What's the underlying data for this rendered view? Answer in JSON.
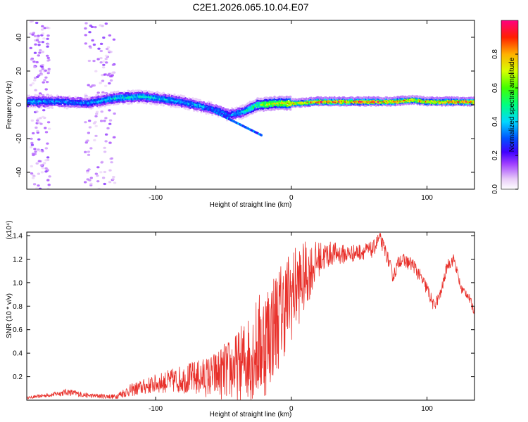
{
  "figure_title": "C2E1.2026.065.10.04.E07",
  "colors": {
    "snr_line": "#e8302a",
    "axis": "#000000",
    "background": "#ffffff"
  },
  "chart_data": [
    {
      "type": "heatmap",
      "title": "C2E1.2026.065.10.04.E07",
      "xlabel": "Height of straight line (km)",
      "ylabel": "Frequency (Hz)",
      "xlim": [
        -195,
        135
      ],
      "ylim": [
        -50,
        50
      ],
      "x_ticks": [
        -100,
        0,
        100
      ],
      "y_ticks": [
        -40,
        -20,
        0,
        20,
        40
      ],
      "colorbar": {
        "label": "Normalized spectral amplitude",
        "range": [
          0,
          1
        ],
        "ticks": [
          0.0,
          0.2,
          0.4,
          0.6,
          0.8
        ]
      },
      "ridge": {
        "description": "main spectral ridge near 0-5 Hz",
        "x": [
          -195,
          -170,
          -150,
          -130,
          -110,
          -90,
          -70,
          -55,
          -45,
          -35,
          -25,
          -10,
          0,
          20,
          50,
          75,
          90,
          100,
          135
        ],
        "frequency": [
          2,
          2,
          1,
          4,
          5,
          3,
          0,
          -3,
          -6,
          -4,
          0,
          1,
          1,
          2,
          2,
          2,
          3,
          2,
          2
        ],
        "peak_amplitude": [
          0.4,
          0.35,
          0.35,
          0.45,
          0.45,
          0.4,
          0.4,
          0.35,
          0.35,
          0.45,
          0.6,
          0.75,
          0.8,
          0.9,
          0.95,
          0.9,
          0.8,
          0.85,
          0.95
        ]
      }
    },
    {
      "type": "line",
      "xlabel": "Height of straight line (km)",
      "ylabel": "SNR (10 * v/v)",
      "y_multiplier_label": "(x10⁴)",
      "xlim": [
        -195,
        135
      ],
      "ylim": [
        0.0,
        1.43
      ],
      "x_ticks": [
        -100,
        0,
        100
      ],
      "y_ticks": [
        0.2,
        0.4,
        0.6,
        0.8,
        1.0,
        1.2,
        1.4
      ],
      "series": [
        {
          "name": "SNR",
          "x": [
            -195,
            -175,
            -165,
            -150,
            -130,
            -120,
            -100,
            -80,
            -60,
            -40,
            -30,
            -20,
            -10,
            0,
            10,
            20,
            30,
            40,
            50,
            60,
            65,
            70,
            75,
            80,
            90,
            100,
            105,
            110,
            115,
            120,
            125,
            130,
            135
          ],
          "base": [
            0.02,
            0.05,
            0.07,
            0.04,
            0.03,
            0.08,
            0.14,
            0.18,
            0.2,
            0.28,
            0.38,
            0.5,
            0.7,
            0.9,
            1.05,
            1.2,
            1.25,
            1.24,
            1.26,
            1.28,
            1.38,
            1.25,
            1.05,
            1.2,
            1.15,
            0.95,
            0.8,
            0.9,
            1.15,
            1.2,
            0.95,
            0.9,
            0.75
          ],
          "amp": [
            0.01,
            0.02,
            0.03,
            0.02,
            0.02,
            0.05,
            0.08,
            0.12,
            0.18,
            0.3,
            0.4,
            0.5,
            0.45,
            0.4,
            0.3,
            0.15,
            0.1,
            0.08,
            0.07,
            0.07,
            0.06,
            0.06,
            0.06,
            0.06,
            0.06,
            0.06,
            0.05,
            0.05,
            0.05,
            0.05,
            0.04,
            0.04,
            0.04
          ]
        }
      ]
    }
  ]
}
